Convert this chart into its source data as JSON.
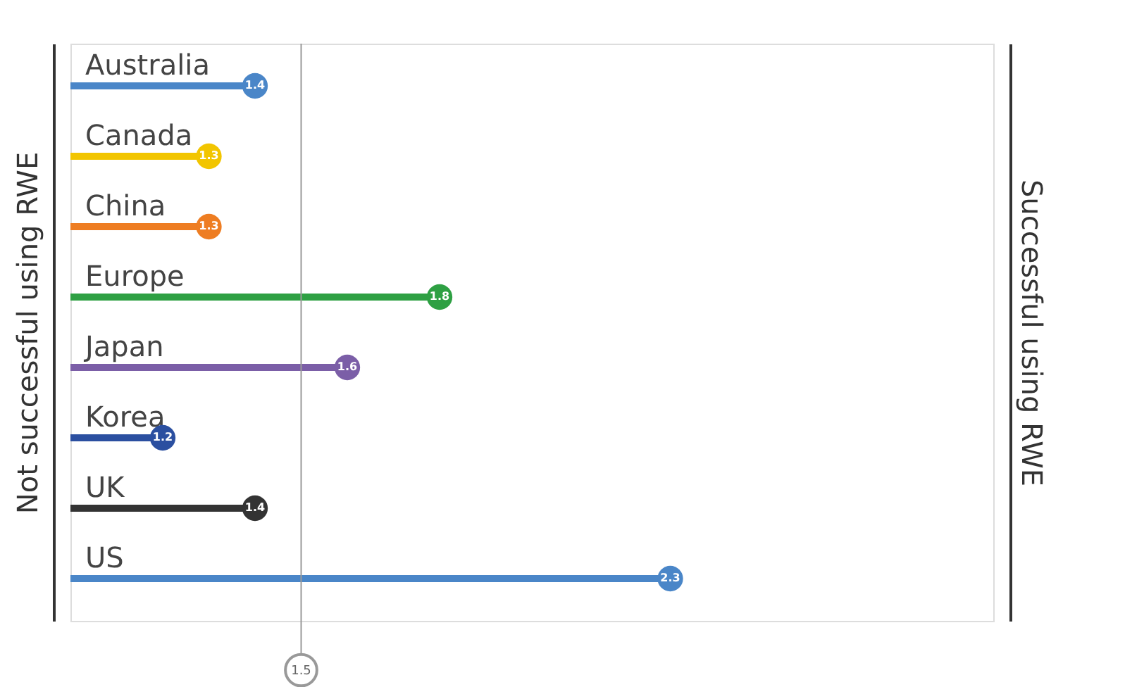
{
  "chart_data": {
    "type": "lollipop",
    "orientation": "horizontal",
    "ylabel": "Not successful using RWE",
    "y2label": "Successful using RWE",
    "categories": [
      "Australia",
      "Canada",
      "China",
      "Europe",
      "Japan",
      "Korea",
      "UK",
      "US"
    ],
    "values": [
      1.4,
      1.3,
      1.3,
      1.8,
      1.6,
      1.2,
      1.4,
      2.3
    ],
    "colors": [
      "#4a86c8",
      "#f2c500",
      "#ee7d22",
      "#2ea043",
      "#7b5ea7",
      "#2b4fa0",
      "#333333",
      "#4a86c8"
    ],
    "xlim": [
      1,
      3
    ],
    "tick_labels": "y",
    "grid": false,
    "data_labels": true,
    "ref_lines": [
      {
        "axis": "x",
        "value": 1.5,
        "label": "1.5",
        "color": "#999999"
      }
    ]
  }
}
